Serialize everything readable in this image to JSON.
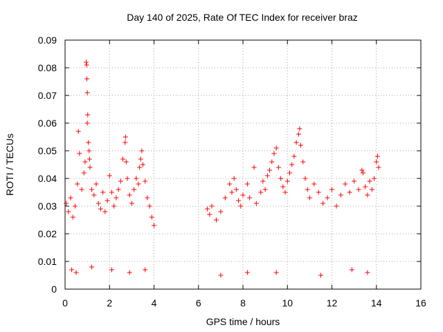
{
  "chart_data": {
    "type": "scatter",
    "title": "Day 140 of 2025, Rate Of TEC Index for receiver braz",
    "xlabel": "GPS time / hours",
    "ylabel": "ROTI / TECUs",
    "xlim": [
      0,
      16
    ],
    "ylim": [
      0,
      0.09
    ],
    "xticks": [
      "0",
      "2",
      "4",
      "6",
      "8",
      "10",
      "12",
      "14",
      "16"
    ],
    "yticks": [
      "0",
      "0.01",
      "0.02",
      "0.03",
      "0.04",
      "0.05",
      "0.06",
      "0.07",
      "0.08",
      "0.09"
    ],
    "grid": true,
    "marker": "+",
    "color": "#ff0000",
    "series": [
      {
        "points": [
          [
            0.05,
            0.031
          ],
          [
            0.15,
            0.028
          ],
          [
            0.25,
            0.033
          ],
          [
            0.35,
            0.026
          ],
          [
            0.45,
            0.03
          ],
          [
            0.55,
            0.038
          ],
          [
            0.6,
            0.057
          ],
          [
            0.65,
            0.049
          ],
          [
            0.75,
            0.036
          ],
          [
            0.85,
            0.042
          ],
          [
            0.9,
            0.046
          ],
          [
            0.95,
            0.082
          ],
          [
            0.97,
            0.081
          ],
          [
            0.98,
            0.076
          ],
          [
            1.0,
            0.071
          ],
          [
            1.02,
            0.063
          ],
          [
            1.0,
            0.06
          ],
          [
            1.05,
            0.053
          ],
          [
            1.08,
            0.05
          ],
          [
            1.1,
            0.047
          ],
          [
            1.12,
            0.044
          ],
          [
            1.2,
            0.036
          ],
          [
            1.3,
            0.034
          ],
          [
            1.4,
            0.038
          ],
          [
            1.5,
            0.031
          ],
          [
            1.6,
            0.029
          ],
          [
            1.7,
            0.035
          ],
          [
            1.8,
            0.028
          ],
          [
            1.9,
            0.032
          ],
          [
            2.0,
            0.041
          ],
          [
            2.1,
            0.035
          ],
          [
            2.2,
            0.03
          ],
          [
            2.3,
            0.033
          ],
          [
            2.4,
            0.036
          ],
          [
            2.5,
            0.039
          ],
          [
            2.6,
            0.047
          ],
          [
            2.7,
            0.053
          ],
          [
            2.72,
            0.055
          ],
          [
            2.75,
            0.046
          ],
          [
            2.8,
            0.04
          ],
          [
            2.9,
            0.034
          ],
          [
            3.0,
            0.031
          ],
          [
            3.1,
            0.036
          ],
          [
            3.2,
            0.04
          ],
          [
            3.3,
            0.038
          ],
          [
            3.35,
            0.044
          ],
          [
            3.4,
            0.047
          ],
          [
            3.45,
            0.05
          ],
          [
            3.5,
            0.045
          ],
          [
            3.6,
            0.039
          ],
          [
            3.7,
            0.033
          ],
          [
            3.8,
            0.03
          ],
          [
            3.9,
            0.026
          ],
          [
            4.0,
            0.023
          ],
          [
            0.3,
            0.007
          ],
          [
            0.5,
            0.006
          ],
          [
            1.2,
            0.008
          ],
          [
            2.1,
            0.007
          ],
          [
            2.9,
            0.006
          ],
          [
            3.6,
            0.007
          ],
          [
            6.4,
            0.029
          ],
          [
            6.5,
            0.027
          ],
          [
            6.6,
            0.03
          ],
          [
            6.8,
            0.025
          ],
          [
            7.0,
            0.028
          ],
          [
            7.2,
            0.033
          ],
          [
            7.4,
            0.038
          ],
          [
            7.5,
            0.035
          ],
          [
            7.6,
            0.04
          ],
          [
            7.7,
            0.036
          ],
          [
            7.8,
            0.032
          ],
          [
            7.9,
            0.03
          ],
          [
            8.0,
            0.034
          ],
          [
            8.2,
            0.038
          ],
          [
            8.3,
            0.033
          ],
          [
            8.5,
            0.044
          ],
          [
            8.6,
            0.031
          ],
          [
            8.8,
            0.035
          ],
          [
            8.9,
            0.039
          ],
          [
            9.0,
            0.036
          ],
          [
            9.1,
            0.041
          ],
          [
            9.2,
            0.043
          ],
          [
            9.3,
            0.046
          ],
          [
            9.4,
            0.049
          ],
          [
            9.5,
            0.051
          ],
          [
            9.6,
            0.044
          ],
          [
            9.7,
            0.04
          ],
          [
            9.8,
            0.037
          ],
          [
            9.9,
            0.035
          ],
          [
            10.0,
            0.039
          ],
          [
            10.1,
            0.042
          ],
          [
            10.2,
            0.045
          ],
          [
            10.3,
            0.048
          ],
          [
            10.4,
            0.053
          ],
          [
            10.5,
            0.056
          ],
          [
            10.55,
            0.058
          ],
          [
            10.6,
            0.052
          ],
          [
            10.7,
            0.046
          ],
          [
            10.8,
            0.04
          ],
          [
            10.9,
            0.036
          ],
          [
            11.0,
            0.033
          ],
          [
            11.2,
            0.038
          ],
          [
            11.4,
            0.035
          ],
          [
            11.6,
            0.031
          ],
          [
            11.8,
            0.033
          ],
          [
            12.0,
            0.036
          ],
          [
            12.2,
            0.03
          ],
          [
            12.4,
            0.034
          ],
          [
            12.6,
            0.038
          ],
          [
            12.8,
            0.035
          ],
          [
            13.0,
            0.039
          ],
          [
            13.2,
            0.036
          ],
          [
            13.35,
            0.043
          ],
          [
            13.4,
            0.042
          ],
          [
            13.5,
            0.037
          ],
          [
            13.6,
            0.034
          ],
          [
            13.7,
            0.039
          ],
          [
            13.8,
            0.036
          ],
          [
            13.9,
            0.04
          ],
          [
            14.0,
            0.046
          ],
          [
            14.05,
            0.048
          ],
          [
            14.1,
            0.044
          ],
          [
            7.0,
            0.005
          ],
          [
            8.2,
            0.006
          ],
          [
            9.5,
            0.006
          ],
          [
            11.5,
            0.005
          ],
          [
            12.9,
            0.007
          ],
          [
            13.6,
            0.006
          ]
        ]
      }
    ]
  }
}
